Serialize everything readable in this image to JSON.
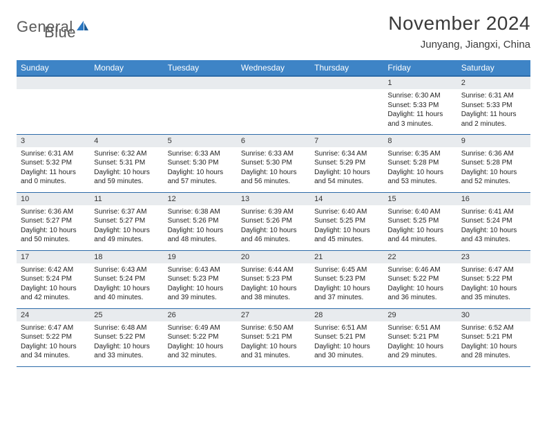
{
  "logo": {
    "part1": "General",
    "part2": "Blue"
  },
  "title": "November 2024",
  "location": "Junyang, Jiangxi, China",
  "headers_bg": "#3e84c6",
  "headers_border": "#2b6aa8",
  "daynum_bg": "#e8ebee",
  "headers": [
    "Sunday",
    "Monday",
    "Tuesday",
    "Wednesday",
    "Thursday",
    "Friday",
    "Saturday"
  ],
  "weeks": [
    [
      null,
      null,
      null,
      null,
      null,
      {
        "n": "1",
        "sr": "6:30 AM",
        "ss": "5:33 PM",
        "dl": "11 hours and 3 minutes."
      },
      {
        "n": "2",
        "sr": "6:31 AM",
        "ss": "5:33 PM",
        "dl": "11 hours and 2 minutes."
      }
    ],
    [
      {
        "n": "3",
        "sr": "6:31 AM",
        "ss": "5:32 PM",
        "dl": "11 hours and 0 minutes."
      },
      {
        "n": "4",
        "sr": "6:32 AM",
        "ss": "5:31 PM",
        "dl": "10 hours and 59 minutes."
      },
      {
        "n": "5",
        "sr": "6:33 AM",
        "ss": "5:30 PM",
        "dl": "10 hours and 57 minutes."
      },
      {
        "n": "6",
        "sr": "6:33 AM",
        "ss": "5:30 PM",
        "dl": "10 hours and 56 minutes."
      },
      {
        "n": "7",
        "sr": "6:34 AM",
        "ss": "5:29 PM",
        "dl": "10 hours and 54 minutes."
      },
      {
        "n": "8",
        "sr": "6:35 AM",
        "ss": "5:28 PM",
        "dl": "10 hours and 53 minutes."
      },
      {
        "n": "9",
        "sr": "6:36 AM",
        "ss": "5:28 PM",
        "dl": "10 hours and 52 minutes."
      }
    ],
    [
      {
        "n": "10",
        "sr": "6:36 AM",
        "ss": "5:27 PM",
        "dl": "10 hours and 50 minutes."
      },
      {
        "n": "11",
        "sr": "6:37 AM",
        "ss": "5:27 PM",
        "dl": "10 hours and 49 minutes."
      },
      {
        "n": "12",
        "sr": "6:38 AM",
        "ss": "5:26 PM",
        "dl": "10 hours and 48 minutes."
      },
      {
        "n": "13",
        "sr": "6:39 AM",
        "ss": "5:26 PM",
        "dl": "10 hours and 46 minutes."
      },
      {
        "n": "14",
        "sr": "6:40 AM",
        "ss": "5:25 PM",
        "dl": "10 hours and 45 minutes."
      },
      {
        "n": "15",
        "sr": "6:40 AM",
        "ss": "5:25 PM",
        "dl": "10 hours and 44 minutes."
      },
      {
        "n": "16",
        "sr": "6:41 AM",
        "ss": "5:24 PM",
        "dl": "10 hours and 43 minutes."
      }
    ],
    [
      {
        "n": "17",
        "sr": "6:42 AM",
        "ss": "5:24 PM",
        "dl": "10 hours and 42 minutes."
      },
      {
        "n": "18",
        "sr": "6:43 AM",
        "ss": "5:24 PM",
        "dl": "10 hours and 40 minutes."
      },
      {
        "n": "19",
        "sr": "6:43 AM",
        "ss": "5:23 PM",
        "dl": "10 hours and 39 minutes."
      },
      {
        "n": "20",
        "sr": "6:44 AM",
        "ss": "5:23 PM",
        "dl": "10 hours and 38 minutes."
      },
      {
        "n": "21",
        "sr": "6:45 AM",
        "ss": "5:23 PM",
        "dl": "10 hours and 37 minutes."
      },
      {
        "n": "22",
        "sr": "6:46 AM",
        "ss": "5:22 PM",
        "dl": "10 hours and 36 minutes."
      },
      {
        "n": "23",
        "sr": "6:47 AM",
        "ss": "5:22 PM",
        "dl": "10 hours and 35 minutes."
      }
    ],
    [
      {
        "n": "24",
        "sr": "6:47 AM",
        "ss": "5:22 PM",
        "dl": "10 hours and 34 minutes."
      },
      {
        "n": "25",
        "sr": "6:48 AM",
        "ss": "5:22 PM",
        "dl": "10 hours and 33 minutes."
      },
      {
        "n": "26",
        "sr": "6:49 AM",
        "ss": "5:22 PM",
        "dl": "10 hours and 32 minutes."
      },
      {
        "n": "27",
        "sr": "6:50 AM",
        "ss": "5:21 PM",
        "dl": "10 hours and 31 minutes."
      },
      {
        "n": "28",
        "sr": "6:51 AM",
        "ss": "5:21 PM",
        "dl": "10 hours and 30 minutes."
      },
      {
        "n": "29",
        "sr": "6:51 AM",
        "ss": "5:21 PM",
        "dl": "10 hours and 29 minutes."
      },
      {
        "n": "30",
        "sr": "6:52 AM",
        "ss": "5:21 PM",
        "dl": "10 hours and 28 minutes."
      }
    ]
  ],
  "labels": {
    "sunrise": "Sunrise:",
    "sunset": "Sunset:",
    "daylight": "Daylight:"
  }
}
